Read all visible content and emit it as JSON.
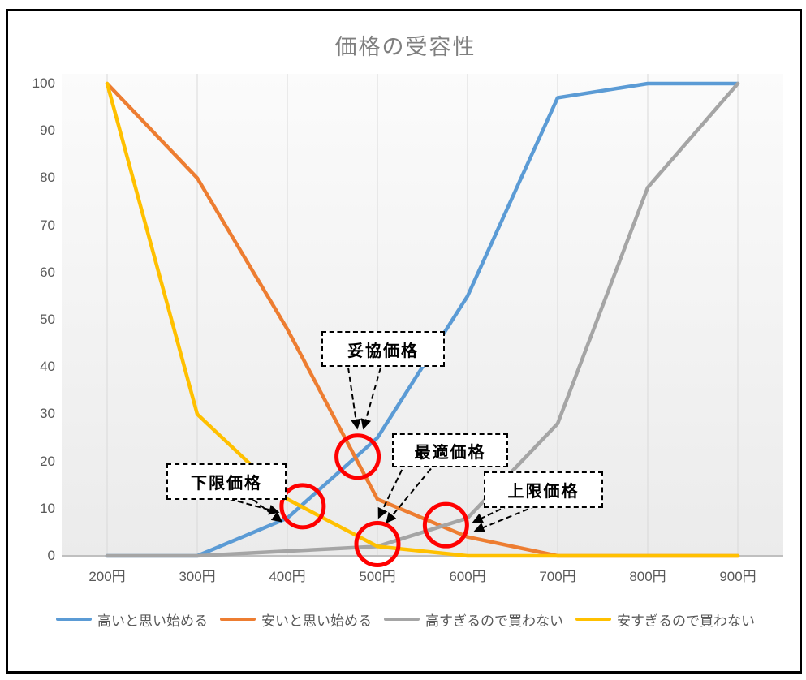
{
  "title": "価格の受容性",
  "chart_data": {
    "type": "line",
    "title": "価格の受容性",
    "x_categories": [
      "200円",
      "300円",
      "400円",
      "500円",
      "600円",
      "700円",
      "800円",
      "900円"
    ],
    "x_values": [
      200,
      300,
      400,
      500,
      600,
      700,
      800,
      900
    ],
    "yticks": [
      0,
      10,
      20,
      30,
      40,
      50,
      60,
      70,
      80,
      90,
      100
    ],
    "ylim": [
      0,
      100
    ],
    "grid": "vertical-only",
    "legend_position": "bottom",
    "series": [
      {
        "name": "高いと思い始める",
        "color": "#5B9BD5",
        "values": [
          0,
          0,
          8,
          25,
          55,
          97,
          100,
          100
        ]
      },
      {
        "name": "安いと思い始める",
        "color": "#ED7D31",
        "values": [
          100,
          80,
          48,
          12,
          4,
          0,
          0,
          0
        ]
      },
      {
        "name": "高すぎるので買わない",
        "color": "#A5A5A5",
        "values": [
          0,
          0,
          1,
          2,
          8,
          28,
          78,
          100
        ]
      },
      {
        "name": "安すぎるので買わない",
        "color": "#FFC000",
        "values": [
          100,
          30,
          12,
          2,
          0,
          0,
          0,
          0
        ]
      }
    ],
    "annotations": [
      {
        "label": "妥協価格",
        "price": 478,
        "value": 21
      },
      {
        "label": "最適価格",
        "price": 500,
        "value": 2.5
      },
      {
        "label": "下限価格",
        "price": 417,
        "value": 10.5
      },
      {
        "label": "上限価格",
        "price": 576,
        "value": 6.5
      }
    ],
    "annotation_marker_color": "#FF0000",
    "gridline_color": "#D9D9D9",
    "axis_line_color": "#BFBFBF",
    "title_color": "#7F7F7F",
    "tick_label_color": "#595959"
  }
}
